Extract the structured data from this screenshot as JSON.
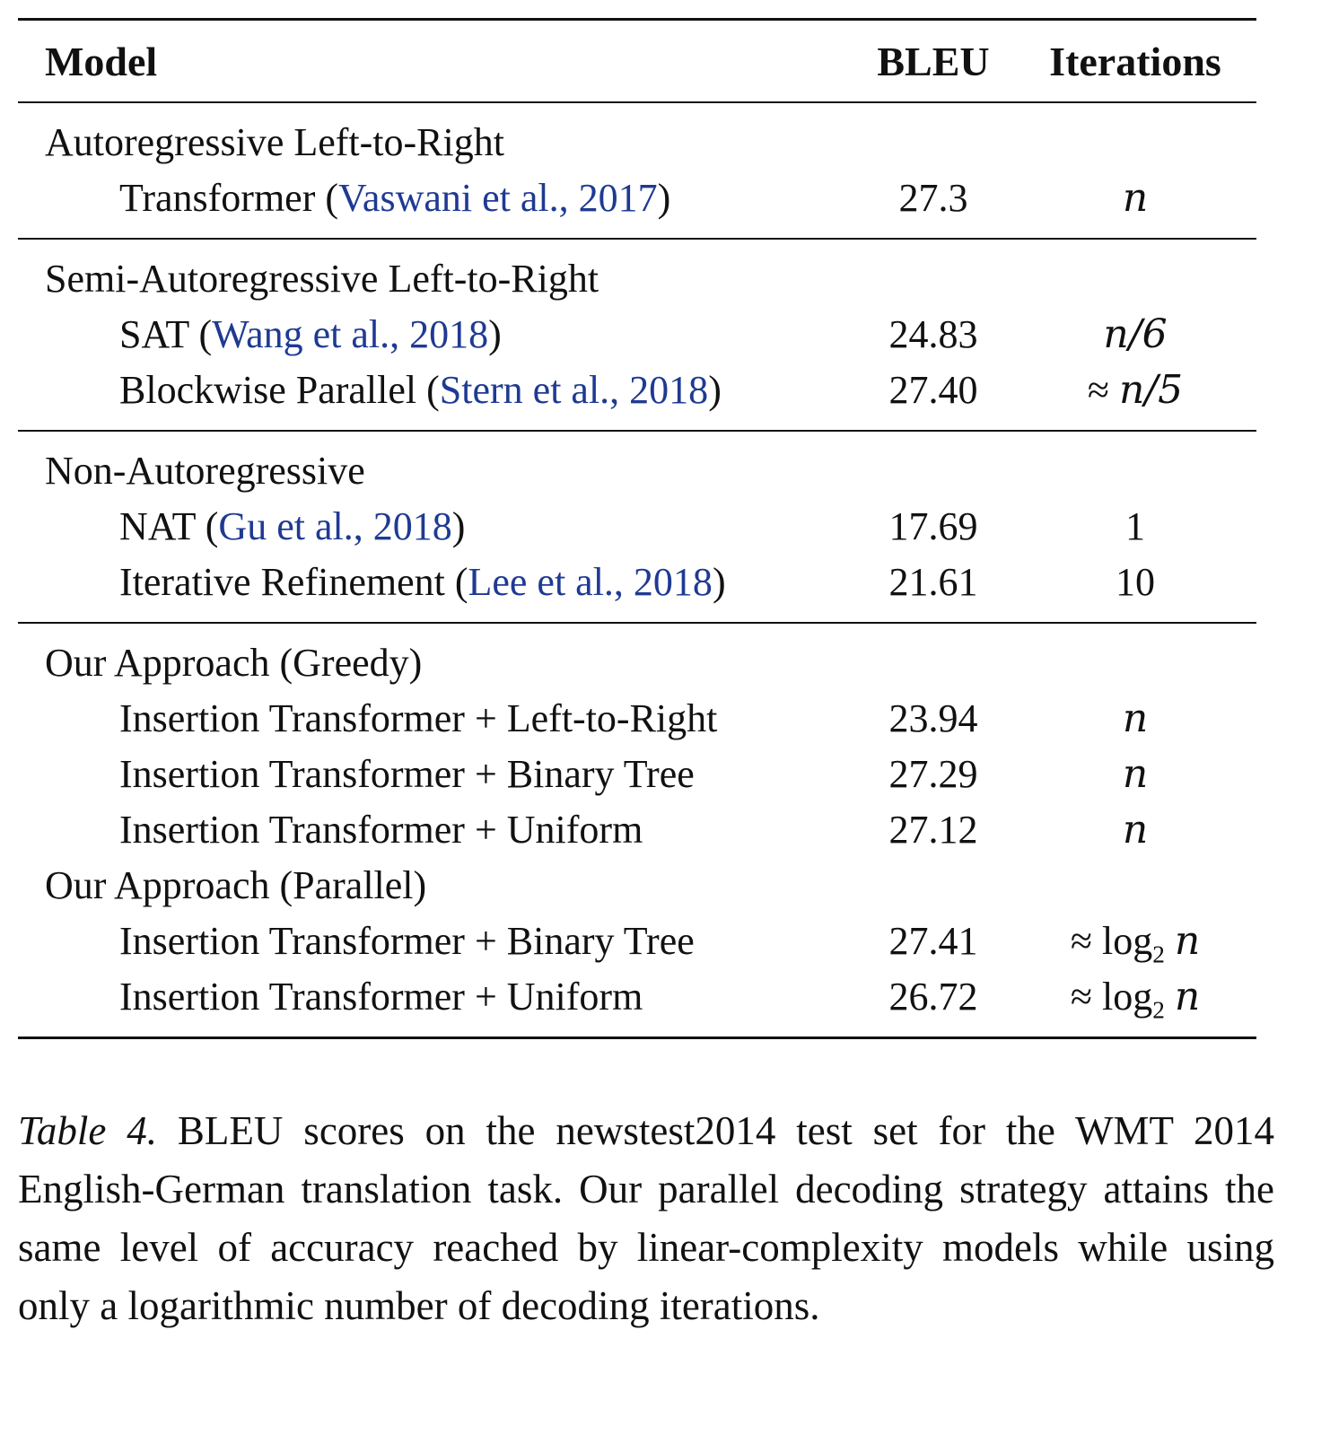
{
  "table": {
    "headers": {
      "model": "Model",
      "bleu": "BLEU",
      "iterations": "Iterations"
    },
    "groups": [
      {
        "title": "Autoregressive Left-to-Right",
        "rows": [
          {
            "model": "Transformer",
            "citation": "Vaswani et al., 2017",
            "bleu": "27.3",
            "iterations": {
              "approx": "",
              "expr": "n",
              "sub": "",
              "var": ""
            }
          }
        ]
      },
      {
        "title": "Semi-Autoregressive Left-to-Right",
        "rows": [
          {
            "model": "SAT",
            "citation": "Wang et al., 2018",
            "bleu": "24.83",
            "iterations": {
              "approx": "",
              "expr": "n/6",
              "sub": "",
              "var": ""
            }
          },
          {
            "model": "Blockwise Parallel",
            "citation": "Stern et al., 2018",
            "bleu": "27.40",
            "iterations": {
              "approx": "≈",
              "expr": "n/5",
              "sub": "",
              "var": ""
            }
          }
        ]
      },
      {
        "title": "Non-Autoregressive",
        "rows": [
          {
            "model": "NAT",
            "citation": "Gu et al., 2018",
            "bleu": "17.69",
            "iterations": {
              "approx": "",
              "expr": "1",
              "sub": "",
              "var": ""
            }
          },
          {
            "model": "Iterative Refinement",
            "citation": "Lee et al., 2018",
            "bleu": "21.61",
            "iterations": {
              "approx": "",
              "expr": "10",
              "sub": "",
              "var": ""
            }
          }
        ]
      },
      {
        "title": "Our Approach (Greedy)",
        "rows": [
          {
            "model": "Insertion Transformer + Left-to-Right",
            "citation": "",
            "bleu": "23.94",
            "iterations": {
              "approx": "",
              "expr": "n",
              "sub": "",
              "var": ""
            }
          },
          {
            "model": "Insertion Transformer + Binary Tree",
            "citation": "",
            "bleu": "27.29",
            "iterations": {
              "approx": "",
              "expr": "n",
              "sub": "",
              "var": ""
            }
          },
          {
            "model": "Insertion Transformer + Uniform",
            "citation": "",
            "bleu": "27.12",
            "iterations": {
              "approx": "",
              "expr": "n",
              "sub": "",
              "var": ""
            }
          }
        ],
        "no_rule_after": true
      },
      {
        "title": "Our Approach (Parallel)",
        "rows": [
          {
            "model": "Insertion Transformer + Binary Tree",
            "citation": "",
            "bleu": "27.41",
            "iterations": {
              "approx": "≈",
              "expr": "log",
              "sub": "2",
              "var": "n"
            }
          },
          {
            "model": "Insertion Transformer + Uniform",
            "citation": "",
            "bleu": "26.72",
            "iterations": {
              "approx": "≈",
              "expr": "log",
              "sub": "2",
              "var": "n"
            }
          }
        ]
      }
    ]
  },
  "caption": {
    "label": "Table 4.",
    "text": "BLEU scores on the newstest2014 test set for the WMT 2014 English-German translation task. Our parallel decoding strategy attains the same level of accuracy reached by linear-complexity models while using only a logarithmic number of decoding iterations."
  }
}
